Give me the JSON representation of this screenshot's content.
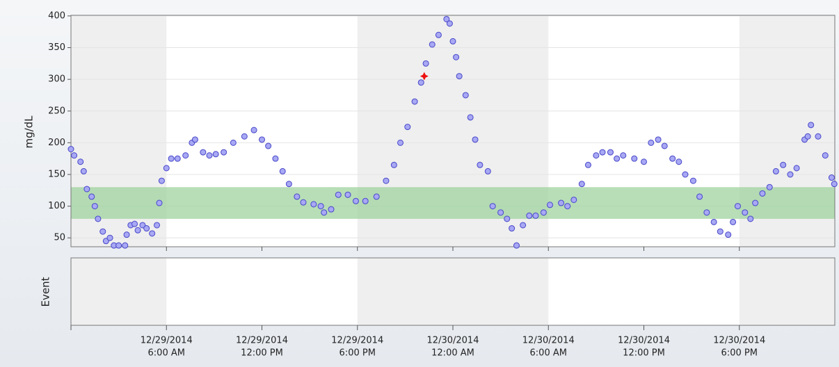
{
  "chart_data": {
    "type": "scatter",
    "ylabel": "mg/dL",
    "event_label": "Event",
    "ylim": [
      36,
      401
    ],
    "yticks": [
      50,
      100,
      150,
      200,
      250,
      300,
      350,
      400
    ],
    "xlim": [
      "2014-12-29T00:00",
      "2014-12-31T00:00"
    ],
    "xticks": [
      {
        "value": "2014-12-29T06:00",
        "label": [
          "12/29/2014",
          "6:00 AM"
        ]
      },
      {
        "value": "2014-12-29T12:00",
        "label": [
          "12/29/2014",
          "12:00 PM"
        ]
      },
      {
        "value": "2014-12-29T18:00",
        "label": [
          "12/29/2014",
          "6:00 PM"
        ]
      },
      {
        "value": "2014-12-30T00:00",
        "label": [
          "12/30/2014",
          "12:00 AM"
        ]
      },
      {
        "value": "2014-12-30T06:00",
        "label": [
          "12/30/2014",
          "6:00 AM"
        ]
      },
      {
        "value": "2014-12-30T12:00",
        "label": [
          "12/30/2014",
          "12:00 PM"
        ]
      },
      {
        "value": "2014-12-30T18:00",
        "label": [
          "12/30/2014",
          "6:00 PM"
        ]
      }
    ],
    "target_range": [
      80,
      130
    ],
    "target_color": "#9fd39f",
    "night_shading": [
      [
        "2014-12-29T00:00",
        "2014-12-29T06:00"
      ],
      [
        "2014-12-29T18:00",
        "2014-12-30T06:00"
      ],
      [
        "2014-12-30T18:00",
        "2014-12-31T00:00"
      ]
    ],
    "grid": true,
    "series": [
      {
        "color": "#a8a8f4",
        "edge": "#4646c8",
        "x": [
          "2014-12-29T00:00",
          "2014-12-29T00:12",
          "2014-12-29T00:36",
          "2014-12-29T00:48",
          "2014-12-29T01:00",
          "2014-12-29T01:18",
          "2014-12-29T01:30",
          "2014-12-29T01:42",
          "2014-12-29T02:00",
          "2014-12-29T02:12",
          "2014-12-29T02:27",
          "2014-12-29T02:42",
          "2014-12-29T03:00",
          "2014-12-29T03:24",
          "2014-12-29T03:30",
          "2014-12-29T03:45",
          "2014-12-29T04:00",
          "2014-12-29T04:12",
          "2014-12-29T04:30",
          "2014-12-29T04:45",
          "2014-12-29T05:06",
          "2014-12-29T05:24",
          "2014-12-29T05:33",
          "2014-12-29T05:42",
          "2014-12-29T06:00",
          "2014-12-29T06:18",
          "2014-12-29T06:42",
          "2014-12-29T07:12",
          "2014-12-29T07:36",
          "2014-12-29T07:48",
          "2014-12-29T08:18",
          "2014-12-29T08:42",
          "2014-12-29T09:06",
          "2014-12-29T09:36",
          "2014-12-29T10:12",
          "2014-12-29T10:54",
          "2014-12-29T11:30",
          "2014-12-29T12:00",
          "2014-12-29T12:24",
          "2014-12-29T12:51",
          "2014-12-29T13:18",
          "2014-12-29T13:42",
          "2014-12-29T14:12",
          "2014-12-29T14:36",
          "2014-12-29T15:15",
          "2014-12-29T15:42",
          "2014-12-29T15:54",
          "2014-12-29T16:21",
          "2014-12-29T16:48",
          "2014-12-29T17:24",
          "2014-12-29T17:54",
          "2014-12-29T18:30",
          "2014-12-29T19:12",
          "2014-12-29T19:48",
          "2014-12-29T20:18",
          "2014-12-29T20:42",
          "2014-12-29T21:09",
          "2014-12-29T21:36",
          "2014-12-29T22:00",
          "2014-12-29T22:18",
          "2014-12-29T22:42",
          "2014-12-29T23:06",
          "2014-12-29T23:36",
          "2014-12-29T23:48",
          "2014-12-30T00:00",
          "2014-12-30T00:12",
          "2014-12-30T00:24",
          "2014-12-30T00:48",
          "2014-12-30T01:06",
          "2014-12-30T01:24",
          "2014-12-30T01:42",
          "2014-12-30T02:12",
          "2014-12-30T02:30",
          "2014-12-30T03:00",
          "2014-12-30T03:24",
          "2014-12-30T03:42",
          "2014-12-30T04:00",
          "2014-12-30T04:24",
          "2014-12-30T04:48",
          "2014-12-30T05:12",
          "2014-12-30T05:42",
          "2014-12-30T06:06",
          "2014-12-30T06:48",
          "2014-12-30T07:12",
          "2014-12-30T07:36",
          "2014-12-30T08:06",
          "2014-12-30T08:30",
          "2014-12-30T09:00",
          "2014-12-30T09:24",
          "2014-12-30T09:54",
          "2014-12-30T10:18",
          "2014-12-30T10:42",
          "2014-12-30T11:24",
          "2014-12-30T12:00",
          "2014-12-30T12:27",
          "2014-12-30T12:54",
          "2014-12-30T13:18",
          "2014-12-30T13:48",
          "2014-12-30T14:12",
          "2014-12-30T14:36",
          "2014-12-30T15:06",
          "2014-12-30T15:30",
          "2014-12-30T15:57",
          "2014-12-30T16:24",
          "2014-12-30T16:48",
          "2014-12-30T17:18",
          "2014-12-30T17:36",
          "2014-12-30T17:54",
          "2014-12-30T18:21",
          "2014-12-30T18:42",
          "2014-12-30T19:00",
          "2014-12-30T19:27",
          "2014-12-30T19:54",
          "2014-12-30T20:18",
          "2014-12-30T20:45",
          "2014-12-30T21:12",
          "2014-12-30T21:36",
          "2014-12-30T22:06",
          "2014-12-30T22:18",
          "2014-12-30T22:30",
          "2014-12-30T22:57",
          "2014-12-30T23:24",
          "2014-12-30T23:48",
          "2014-12-30T23:58"
        ],
        "values": [
          190,
          180,
          170,
          155,
          127,
          115,
          100,
          80,
          60,
          45,
          50,
          38,
          38,
          38,
          55,
          70,
          72,
          62,
          70,
          65,
          57,
          70,
          105,
          140,
          160,
          175,
          175,
          180,
          200,
          205,
          185,
          180,
          182,
          185,
          200,
          210,
          220,
          205,
          195,
          175,
          155,
          135,
          115,
          106,
          103,
          100,
          90,
          95,
          118,
          118,
          108,
          108,
          115,
          140,
          165,
          200,
          225,
          265,
          295,
          325,
          355,
          370,
          395,
          388,
          360,
          335,
          305,
          275,
          240,
          205,
          165,
          155,
          100,
          90,
          80,
          65,
          38,
          70,
          85,
          85,
          90,
          102,
          105,
          100,
          110,
          135,
          165,
          180,
          185,
          185,
          175,
          180,
          175,
          170,
          200,
          205,
          195,
          175,
          170,
          150,
          140,
          115,
          90,
          75,
          60,
          55,
          75,
          100,
          90,
          80,
          105,
          120,
          130,
          155,
          165,
          150,
          160,
          205,
          210,
          228,
          210,
          180,
          145,
          135
        ]
      }
    ],
    "marker": {
      "x": "2014-12-29T22:12",
      "y": 305,
      "color": "#ee1111"
    }
  }
}
